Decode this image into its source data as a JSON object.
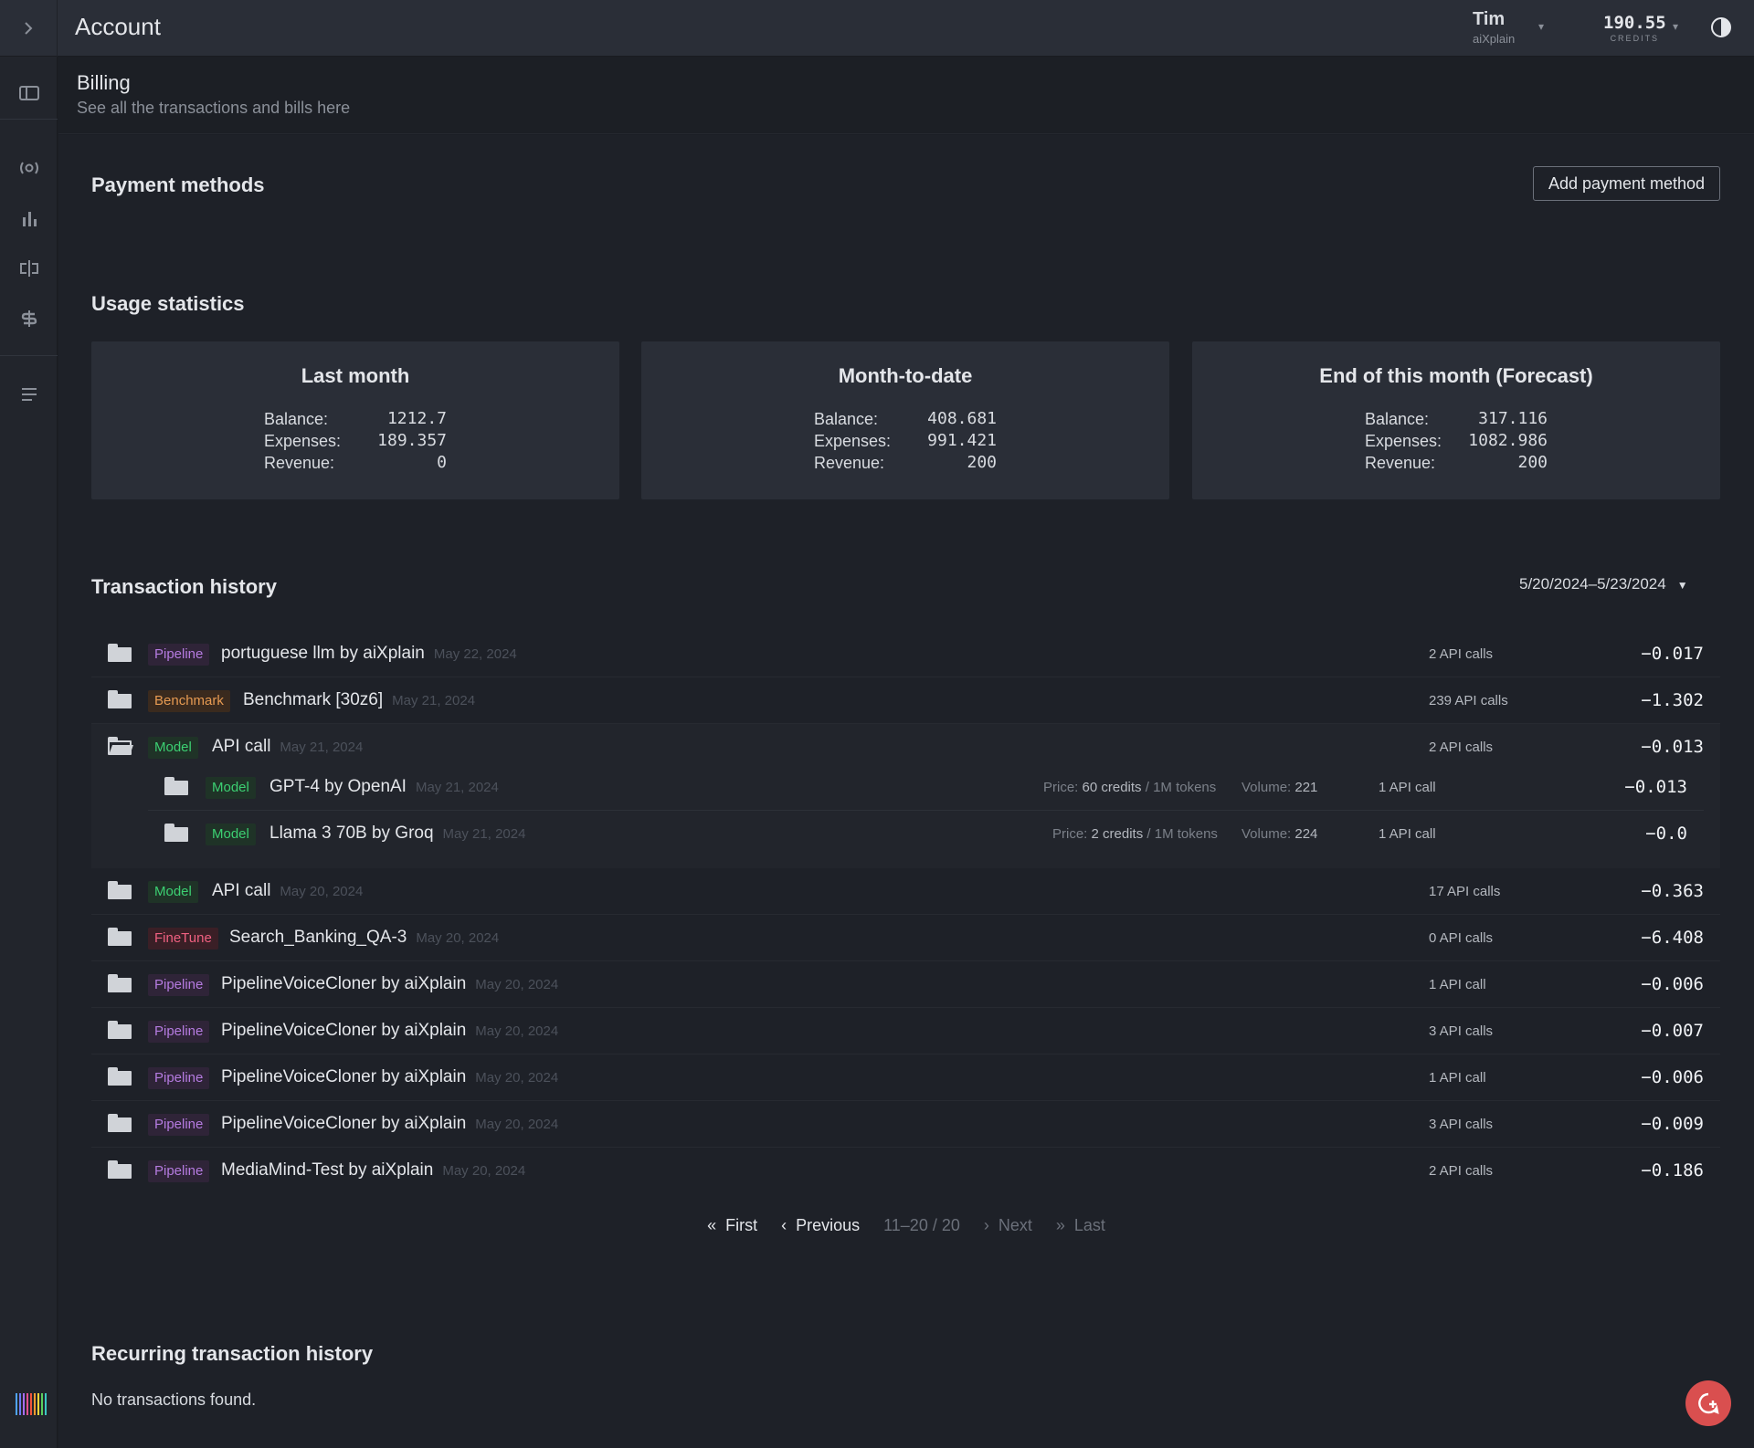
{
  "topbar": {
    "title": "Account",
    "user_name": "Tim",
    "user_org": "aiXplain",
    "credits_value": "190.55",
    "credits_label": "CREDITS"
  },
  "header": {
    "title": "Billing",
    "subtitle": "See all the transactions and bills here"
  },
  "payment": {
    "title": "Payment methods",
    "add_label": "Add payment method"
  },
  "usage": {
    "title": "Usage statistics",
    "labels": {
      "balance": "Balance:",
      "expenses": "Expenses:",
      "revenue": "Revenue:"
    },
    "cards": [
      {
        "title": "Last month",
        "balance": "1212.7",
        "expenses": "189.357",
        "revenue": "0"
      },
      {
        "title": "Month-to-date",
        "balance": "408.681",
        "expenses": "991.421",
        "revenue": "200"
      },
      {
        "title": "End of this month (Forecast)",
        "balance": "317.116",
        "expenses": "1082.986",
        "revenue": "200"
      }
    ]
  },
  "transactions": {
    "title": "Transaction history",
    "date_range": "5/20/2024–5/23/2024",
    "rows": [
      {
        "badge": "Pipeline",
        "name": "portuguese llm by aiXplain",
        "date": "May 22, 2024",
        "calls": "2 API calls",
        "amount": "−0.017"
      },
      {
        "badge": "Benchmark",
        "name": "Benchmark [30z6]",
        "date": "May 21, 2024",
        "calls": "239 API calls",
        "amount": "−1.302"
      },
      {
        "badge": "Model",
        "name": "API call",
        "date": "May 21, 2024",
        "calls": "2 API calls",
        "amount": "−0.013"
      },
      {
        "badge": "Model",
        "name": "API call",
        "date": "May 20, 2024",
        "calls": "17 API calls",
        "amount": "−0.363"
      },
      {
        "badge": "FineTune",
        "name": "Search_Banking_QA-3",
        "date": "May 20, 2024",
        "calls": "0 API calls",
        "amount": "−6.408"
      },
      {
        "badge": "Pipeline",
        "name": "PipelineVoiceCloner by aiXplain",
        "date": "May 20, 2024",
        "calls": "1 API call",
        "amount": "−0.006"
      },
      {
        "badge": "Pipeline",
        "name": "PipelineVoiceCloner by aiXplain",
        "date": "May 20, 2024",
        "calls": "3 API calls",
        "amount": "−0.007"
      },
      {
        "badge": "Pipeline",
        "name": "PipelineVoiceCloner by aiXplain",
        "date": "May 20, 2024",
        "calls": "1 API call",
        "amount": "−0.006"
      },
      {
        "badge": "Pipeline",
        "name": "PipelineVoiceCloner by aiXplain",
        "date": "May 20, 2024",
        "calls": "3 API calls",
        "amount": "−0.009"
      },
      {
        "badge": "Pipeline",
        "name": "MediaMind-Test by aiXplain",
        "date": "May 20, 2024",
        "calls": "2 API calls",
        "amount": "−0.186"
      }
    ],
    "subrows": [
      {
        "badge": "Model",
        "name": "GPT-4 by OpenAI",
        "date": "May 21, 2024",
        "price_label": "Price:",
        "price": "60 credits",
        "price_unit": "/ 1M tokens",
        "volume_label": "Volume:",
        "volume": "221",
        "calls": "1 API call",
        "amount": "−0.013"
      },
      {
        "badge": "Model",
        "name": "Llama 3 70B by Groq",
        "date": "May 21, 2024",
        "price_label": "Price:",
        "price": "2 credits",
        "price_unit": "/ 1M tokens",
        "volume_label": "Volume:",
        "volume": "224",
        "calls": "1 API call",
        "amount": "−0.0"
      }
    ]
  },
  "pager": {
    "first": "First",
    "previous": "Previous",
    "info": "11–20 / 20",
    "next": "Next",
    "last": "Last"
  },
  "recurring": {
    "title": "Recurring transaction history",
    "empty": "No transactions found."
  },
  "colors": {
    "pipeline": "#b57be0",
    "benchmark": "#e69a52",
    "model": "#3ccf72",
    "finetune": "#ef6080",
    "fab": "#d94f4f"
  }
}
